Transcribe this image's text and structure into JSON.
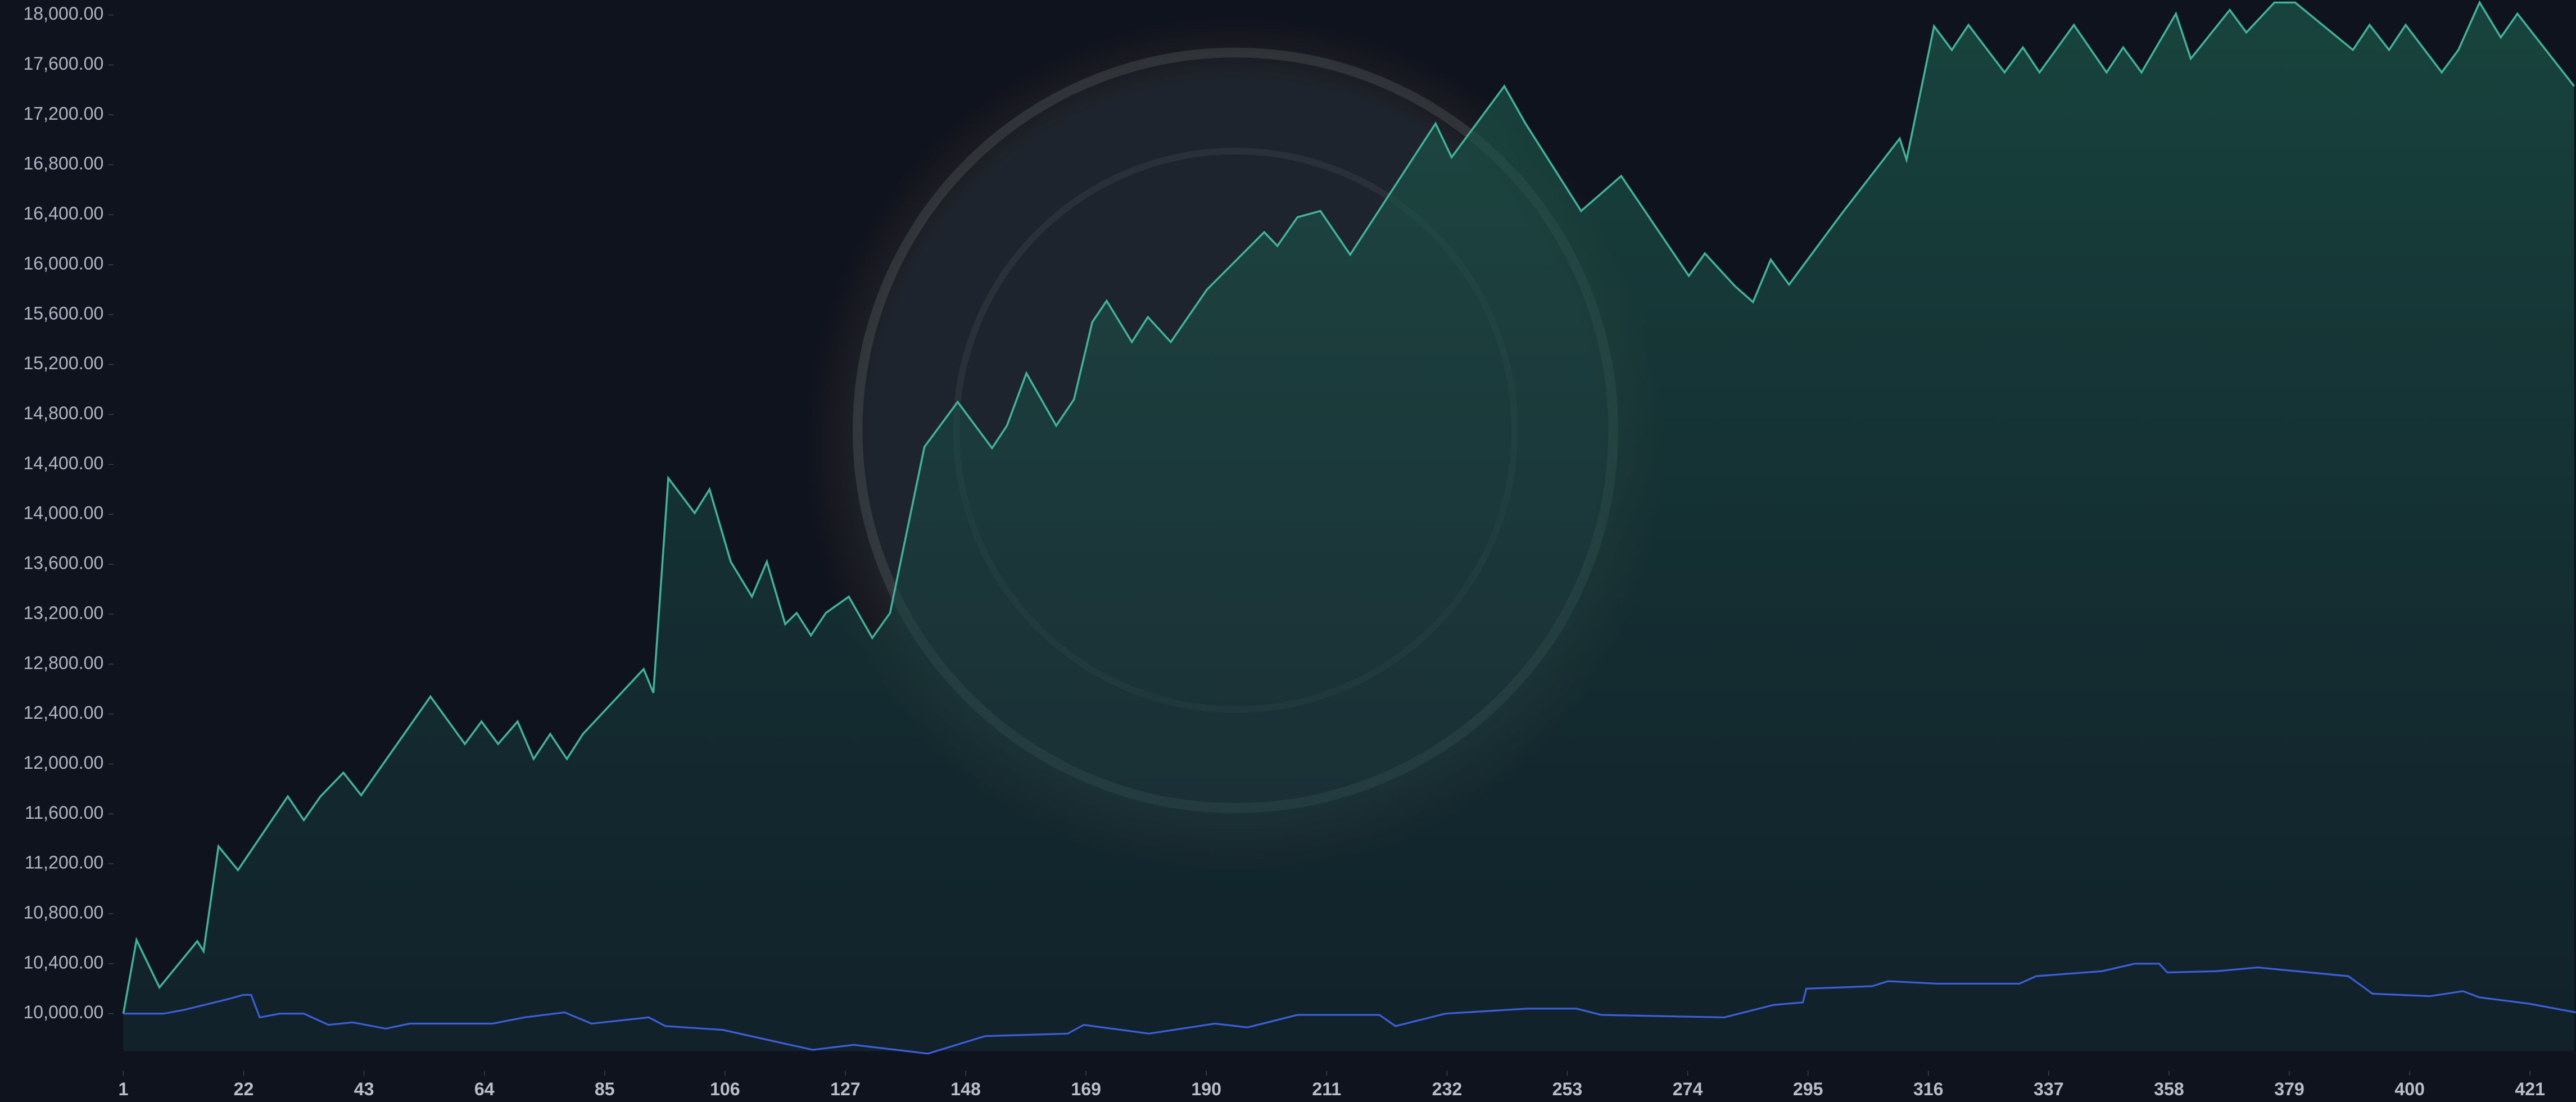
{
  "chart_data": {
    "type": "area",
    "xlim": [
      1,
      429
    ],
    "ylim": [
      9700,
      18120
    ],
    "xticks": [
      1,
      22,
      43,
      64,
      85,
      106,
      127,
      148,
      169,
      190,
      211,
      232,
      253,
      274,
      295,
      316,
      337,
      358,
      379,
      400,
      421
    ],
    "yticks": [
      {
        "value": 10000,
        "label": "10,000.00"
      },
      {
        "value": 10400,
        "label": "10,400.00"
      },
      {
        "value": 10800,
        "label": "10,800.00"
      },
      {
        "value": 11200,
        "label": "11,200.00"
      },
      {
        "value": 11600,
        "label": "11,600.00"
      },
      {
        "value": 12000,
        "label": "12,000.00"
      },
      {
        "value": 12400,
        "label": "12,400.00"
      },
      {
        "value": 12800,
        "label": "12,800.00"
      },
      {
        "value": 13200,
        "label": "13,200.00"
      },
      {
        "value": 13600,
        "label": "13,600.00"
      },
      {
        "value": 14000,
        "label": "14,000.00"
      },
      {
        "value": 14400,
        "label": "14,400.00"
      },
      {
        "value": 14800,
        "label": "14,800.00"
      },
      {
        "value": 15200,
        "label": "15,200.00"
      },
      {
        "value": 15600,
        "label": "15,600.00"
      },
      {
        "value": 16000,
        "label": "16,000.00"
      },
      {
        "value": 16400,
        "label": "16,400.00"
      },
      {
        "value": 16800,
        "label": "16,800.00"
      },
      {
        "value": 17200,
        "label": "17,200.00"
      },
      {
        "value": 17600,
        "label": "17,600.00"
      },
      {
        "value": 18000,
        "label": "18,000.00"
      }
    ],
    "series": [
      {
        "color": "#3fb49a",
        "fill": true,
        "x": [
          1,
          3.3,
          7.3,
          13.9,
          15,
          17.6,
          21,
          29.7,
          32.5,
          35.4,
          39.4,
          42.5,
          54.6,
          60.6,
          63.5,
          66.4,
          69.8,
          72.6,
          75.5,
          78.4,
          81.2,
          91.8,
          93.5,
          96.1,
          100.7,
          103.3,
          107,
          110.7,
          113.3,
          116.5,
          118.5,
          121,
          123.6,
          127.6,
          131.7,
          134.8,
          140.8,
          146.6,
          152.6,
          155.2,
          158.6,
          163.8,
          166.9,
          170.1,
          172.6,
          177,
          179.8,
          183.8,
          190.1,
          200.1,
          202.4,
          205.9,
          209.9,
          215.1,
          230,
          232.8,
          242,
          245.7,
          255.4,
          262.4,
          274.2,
          277,
          282.2,
          285.4,
          288.5,
          291.7,
          300.9,
          311,
          312.2,
          317,
          320.1,
          323,
          329.3,
          332.5,
          335.4,
          341.4,
          347.1,
          350,
          353.2,
          359.2,
          361.8,
          368.6,
          371.5,
          376.4,
          380,
          390.1,
          393,
          396.4,
          399.3,
          405.6,
          408.5,
          412.2,
          415.9,
          418.8,
          428.7
        ],
        "values": [
          10000,
          10590,
          10210,
          10580,
          10500,
          11340,
          11150,
          11740,
          11550,
          11740,
          11930,
          11750,
          12540,
          12160,
          12340,
          12160,
          12340,
          12040,
          12240,
          12040,
          12240,
          12760,
          12570,
          14290,
          14010,
          14200,
          13620,
          13340,
          13620,
          13120,
          13210,
          13030,
          13210,
          13340,
          13010,
          13210,
          14540,
          14900,
          14530,
          14710,
          15130,
          14710,
          14920,
          15540,
          15710,
          15380,
          15580,
          15380,
          15800,
          16260,
          16150,
          16380,
          16430,
          16080,
          17130,
          16860,
          17430,
          17130,
          16430,
          16710,
          15910,
          16090,
          15830,
          15700,
          16040,
          15840,
          16410,
          17010,
          16840,
          17910,
          17720,
          17920,
          17540,
          17740,
          17540,
          17920,
          17540,
          17740,
          17540,
          18010,
          17650,
          18040,
          17860,
          18100,
          18100,
          17720,
          17920,
          17720,
          17920,
          17540,
          17720,
          18100,
          17820,
          18010,
          17430
        ]
      },
      {
        "color": "#3a5fd8",
        "fill": false,
        "x": [
          1,
          8,
          11.6,
          19.6,
          21.9,
          23.3,
          24.8,
          28.3,
          32.5,
          36.8,
          41,
          46.8,
          51,
          65.4,
          71,
          78,
          82.7,
          92.7,
          95.6,
          105.6,
          121.3,
          128.5,
          141.4,
          151.4,
          165.8,
          168.6,
          180,
          191.5,
          197.2,
          205.9,
          220.2,
          223,
          231.7,
          246,
          254.6,
          258.9,
          280.4,
          289,
          294.1,
          294.7,
          306.2,
          309,
          317.6,
          331.9,
          334.8,
          346.3,
          352,
          356.3,
          357.7,
          366.3,
          373.5,
          389.3,
          393.5,
          403.5,
          409.3,
          412.2,
          420.8,
          429
        ],
        "values": [
          10000,
          10000,
          10030,
          10120,
          10150,
          10150,
          9970,
          10000,
          10000,
          9910,
          9930,
          9880,
          9920,
          9920,
          9970,
          10010,
          9920,
          9970,
          9900,
          9870,
          9710,
          9750,
          9680,
          9820,
          9840,
          9910,
          9840,
          9920,
          9890,
          9990,
          9990,
          9900,
          10000,
          10040,
          10040,
          9990,
          9970,
          10070,
          10090,
          10200,
          10220,
          10260,
          10240,
          10240,
          10300,
          10340,
          10400,
          10400,
          10330,
          10340,
          10370,
          10300,
          10160,
          10140,
          10180,
          10130,
          10080,
          10010
        ]
      }
    ]
  }
}
